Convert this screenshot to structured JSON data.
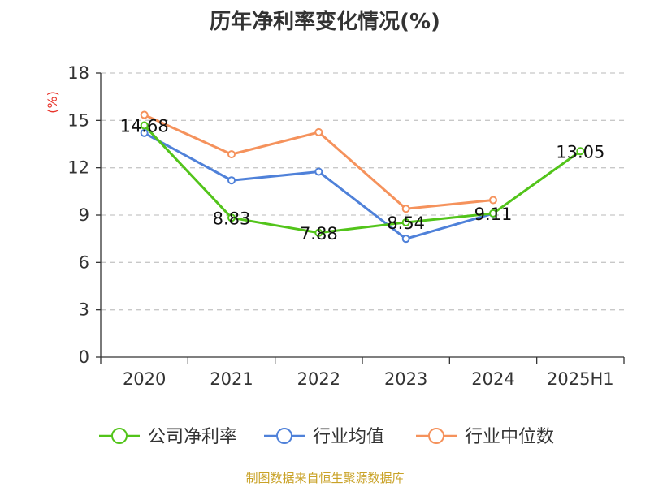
{
  "chart_data": {
    "type": "line",
    "title": "历年净利率变化情况(%)",
    "unit_label": "(%)",
    "categories": [
      "2020",
      "2021",
      "2022",
      "2023",
      "2024",
      "2025H1"
    ],
    "ylim": [
      0,
      18
    ],
    "yticks": [
      0,
      3,
      6,
      9,
      12,
      15,
      18
    ],
    "grid": true,
    "legend_position": "bottom",
    "series": [
      {
        "name": "公司净利率",
        "color": "#52c41a",
        "values": [
          14.68,
          8.83,
          7.88,
          8.54,
          9.11,
          13.05
        ],
        "labels": [
          "14.68",
          "8.83",
          "7.88",
          "8.54",
          "9.11",
          "13.05"
        ]
      },
      {
        "name": "行业均值",
        "color": "#4f81d9",
        "values": [
          14.2,
          11.2,
          11.75,
          7.5,
          9.1,
          null
        ]
      },
      {
        "name": "行业中位数",
        "color": "#f5925c",
        "values": [
          15.35,
          12.85,
          14.25,
          9.4,
          9.95,
          null
        ]
      }
    ]
  },
  "footer": {
    "source": "制图数据来自恒生聚源数据库"
  }
}
